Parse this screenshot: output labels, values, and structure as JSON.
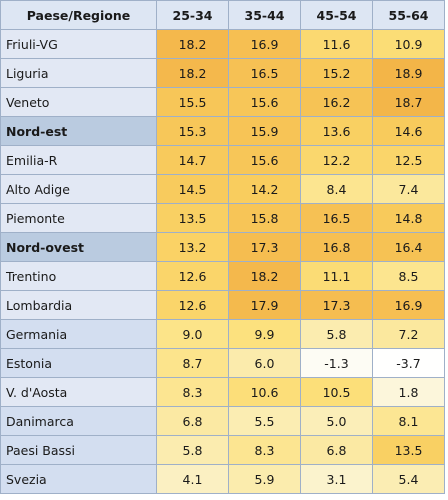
{
  "chart_data": {
    "type": "table",
    "columns": [
      "Paese/Regione",
      "25-34",
      "35-44",
      "45-54",
      "55-64"
    ],
    "rows": [
      {
        "label": "Friuli-VG",
        "kind": "italian-region",
        "values": [
          "18.2",
          "16.9",
          "11.6",
          "10.9"
        ]
      },
      {
        "label": "Liguria",
        "kind": "italian-region",
        "values": [
          "18.2",
          "16.5",
          "15.2",
          "18.9"
        ]
      },
      {
        "label": "Veneto",
        "kind": "italian-region",
        "values": [
          "15.5",
          "15.6",
          "16.2",
          "18.7"
        ]
      },
      {
        "label": "Nord-est",
        "kind": "macro-area",
        "values": [
          "15.3",
          "15.9",
          "13.6",
          "14.6"
        ]
      },
      {
        "label": "Emilia-R",
        "kind": "italian-region",
        "values": [
          "14.7",
          "15.6",
          "12.2",
          "12.5"
        ]
      },
      {
        "label": "Alto Adige",
        "kind": "italian-region",
        "values": [
          "14.5",
          "14.2",
          "8.4",
          "7.4"
        ]
      },
      {
        "label": "Piemonte",
        "kind": "italian-region",
        "values": [
          "13.5",
          "15.8",
          "16.5",
          "14.8"
        ]
      },
      {
        "label": "Nord-ovest",
        "kind": "macro-area",
        "values": [
          "13.2",
          "17.3",
          "16.8",
          "16.4"
        ]
      },
      {
        "label": "Trentino",
        "kind": "italian-region",
        "values": [
          "12.6",
          "18.2",
          "11.1",
          "8.5"
        ]
      },
      {
        "label": "Lombardia",
        "kind": "italian-region",
        "values": [
          "12.6",
          "17.9",
          "17.3",
          "16.9"
        ]
      },
      {
        "label": "Germania",
        "kind": "country",
        "values": [
          "9.0",
          "9.9",
          "5.8",
          "7.2"
        ]
      },
      {
        "label": "Estonia",
        "kind": "country",
        "values": [
          "8.7",
          "6.0",
          "-1.3",
          "-3.7"
        ]
      },
      {
        "label": "V. d'Aosta",
        "kind": "italian-region",
        "values": [
          "8.3",
          "10.6",
          "10.5",
          "1.8"
        ]
      },
      {
        "label": "Danimarca",
        "kind": "country",
        "values": [
          "6.8",
          "5.5",
          "5.0",
          "8.1"
        ]
      },
      {
        "label": "Paesi Bassi",
        "kind": "country",
        "values": [
          "5.8",
          "8.3",
          "6.8",
          "13.5"
        ]
      },
      {
        "label": "Svezia",
        "kind": "country",
        "values": [
          "4.1",
          "5.9",
          "3.1",
          "5.4"
        ]
      }
    ]
  }
}
